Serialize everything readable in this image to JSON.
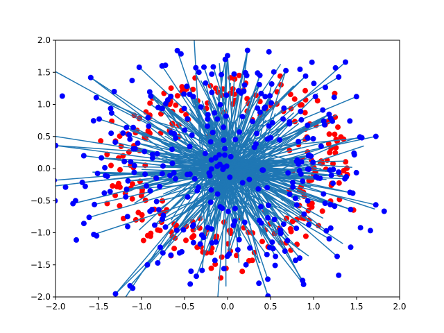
{
  "chart_data": {
    "type": "scatter",
    "title": "",
    "xlabel": "",
    "ylabel": "",
    "xlim": [
      -2,
      2
    ],
    "ylim": [
      -2,
      2
    ],
    "grid": false,
    "xticks": [
      -2.0,
      -1.5,
      -1.0,
      -0.5,
      0.0,
      0.5,
      1.0,
      1.5,
      2.0
    ],
    "yticks": [
      -2.0,
      -1.5,
      -1.0,
      -0.5,
      0.0,
      0.5,
      1.0,
      1.5,
      2.0
    ],
    "xtick_labels": [
      "−2.0",
      "−1.5",
      "−1.0",
      "−0.5",
      "0.0",
      "0.5",
      "1.0",
      "1.5",
      "2.0"
    ],
    "ytick_labels": [
      "−2.0",
      "−1.5",
      "−1.0",
      "−0.5",
      "0.0",
      "0.5",
      "1.0",
      "1.5",
      "2.0"
    ],
    "colors": {
      "red_points": "#ff0000",
      "blue_points": "#0000ff",
      "lines": "#1f77b4",
      "frame": "#000000"
    },
    "rings": [
      {
        "name": "",
        "color": "#ff0000",
        "center_x": 0.0,
        "center_y": 0.0,
        "radius": 1.2,
        "spread": 0.2,
        "count": 270
      },
      {
        "name": "",
        "color": "#0000ff",
        "center_x": 0.0,
        "center_y": 0.0,
        "radius": 1.2,
        "spread": 0.55,
        "count": 350
      }
    ],
    "connections": {
      "description_of_data": "each blue point connected by a line segment to a point on the opposite side near the origin",
      "count": 260,
      "color": "#1f77b4"
    }
  }
}
